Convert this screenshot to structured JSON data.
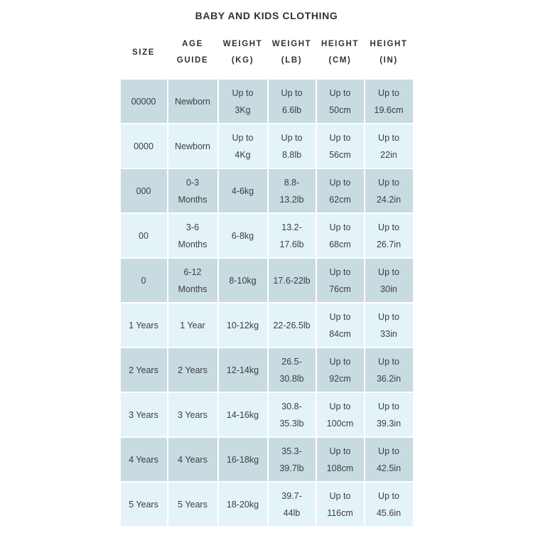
{
  "title": "BABY AND KIDS CLOTHING",
  "colors": {
    "page_background": "#ffffff",
    "row_dark": "#c8dbe0",
    "row_light": "#e3f3f8",
    "text": "#3a4045",
    "heading_text": "#2e3336"
  },
  "table": {
    "headers": [
      "SIZE",
      "AGE\nGUIDE",
      "WEIGHT\n(KG)",
      "WEIGHT\n(LB)",
      "HEIGHT\n(CM)",
      "HEIGHT\n(IN)"
    ],
    "rows": [
      [
        "00000",
        "Newborn",
        "Up to\n3Kg",
        "Up to\n6.6lb",
        "Up to\n50cm",
        "Up to\n19.6cm"
      ],
      [
        "0000",
        "Newborn",
        "Up to\n4Kg",
        "Up to\n8.8lb",
        "Up to\n56cm",
        "Up to\n22in"
      ],
      [
        "000",
        "0-3\nMonths",
        "4-6kg",
        "8.8-\n13.2lb",
        "Up to\n62cm",
        "Up to\n24.2in"
      ],
      [
        "00",
        "3-6\nMonths",
        "6-8kg",
        "13.2-\n17.6lb",
        "Up to\n68cm",
        "Up to\n26.7in"
      ],
      [
        "0",
        "6-12\nMonths",
        "8-10kg",
        "17.6-22lb",
        "Up to\n76cm",
        "Up to\n30in"
      ],
      [
        "1 Years",
        "1 Year",
        "10-12kg",
        "22-26.5lb",
        "Up to\n84cm",
        "Up to\n33in"
      ],
      [
        "2 Years",
        "2 Years",
        "12-14kg",
        "26.5-\n30.8lb",
        "Up to\n92cm",
        "Up to\n36.2in"
      ],
      [
        "3 Years",
        "3 Years",
        "14-16kg",
        "30.8-\n35.3lb",
        "Up to\n100cm",
        "Up to\n39.3in"
      ],
      [
        "4 Years",
        "4 Years",
        "16-18kg",
        "35.3-\n39.7lb",
        "Up to\n108cm",
        "Up to\n42.5in"
      ],
      [
        "5 Years",
        "5 Years",
        "18-20kg",
        "39.7-\n44lb",
        "Up to\n116cm",
        "Up to\n45.6in"
      ]
    ]
  }
}
